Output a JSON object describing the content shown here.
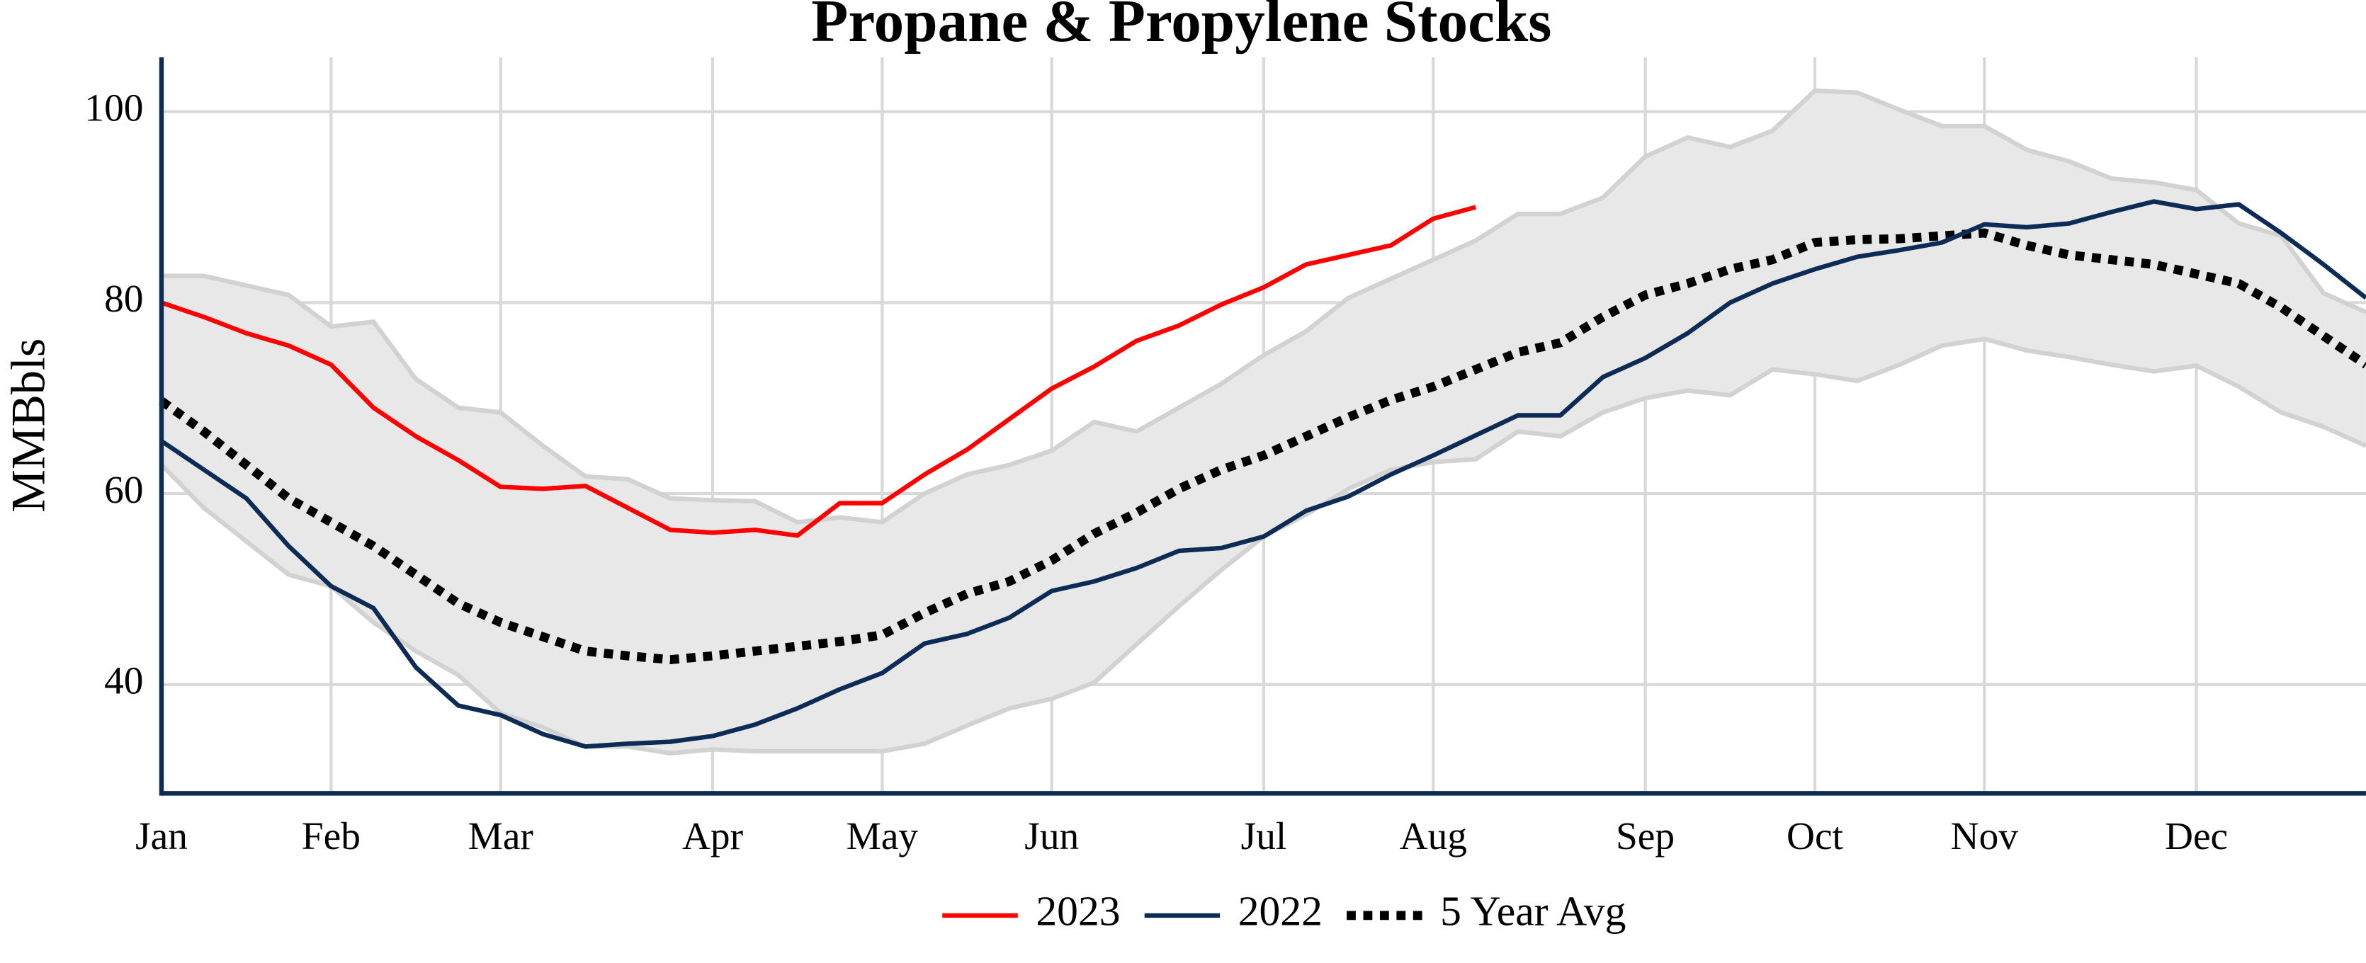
{
  "chart_data": {
    "type": "line",
    "title": "Propane & Propylene Stocks",
    "y_label": "MMBbls",
    "categories": [
      "Jan",
      null,
      null,
      null,
      "Feb",
      null,
      null,
      null,
      "Mar",
      null,
      null,
      null,
      null,
      "Apr",
      null,
      null,
      null,
      "May",
      null,
      null,
      null,
      "Jun",
      null,
      null,
      null,
      null,
      "Jul",
      null,
      null,
      null,
      "Aug",
      null,
      null,
      null,
      null,
      "Sep",
      null,
      null,
      null,
      "Oct",
      null,
      null,
      null,
      "Nov",
      null,
      null,
      null,
      null,
      "Dec",
      null,
      null,
      null,
      null
    ],
    "ylim": [
      28.6,
      105.7
    ],
    "yticks": [
      40,
      60,
      80,
      100
    ],
    "grid": true,
    "legend": "bottom",
    "band": {
      "color": "#e8e8e8",
      "edge_color": "#d2d2d2",
      "upper": [
        82.8,
        82.8,
        81.8,
        80.8,
        77.5,
        78,
        72,
        69,
        68.5,
        65,
        61.8,
        61.5,
        59.5,
        59.3,
        59.2,
        57,
        57.5,
        57,
        60,
        62,
        63,
        64.5,
        67.5,
        66.5,
        69,
        71.5,
        74.5,
        77,
        80.5,
        82.5,
        84.5,
        86.5,
        89.3,
        89.3,
        91,
        95.3,
        97.3,
        96.3,
        98,
        102.2,
        102,
        100.2,
        98.5,
        98.5,
        96,
        94.8,
        93,
        92.6,
        91.8,
        88.3,
        87,
        81,
        79
      ],
      "lower": [
        63,
        58.5,
        55,
        51.5,
        50.3,
        46.5,
        43.5,
        41,
        37,
        35.5,
        33.5,
        33.5,
        32.8,
        33.2,
        33,
        33,
        33,
        33,
        33.8,
        35.7,
        37.5,
        38.5,
        40.2,
        44.2,
        48.2,
        52,
        55.5,
        57.8,
        60.5,
        62.5,
        63.3,
        63.6,
        66.5,
        66,
        68.5,
        70,
        70.8,
        70.3,
        73,
        72.5,
        71.8,
        73.5,
        75.5,
        76.2,
        75,
        74.3,
        73.5,
        72.8,
        73.4,
        71.2,
        68.5,
        67,
        65
      ]
    },
    "series": [
      {
        "name": "2023",
        "color": "#ff0000",
        "dash": "solid",
        "values": [
          80,
          78.5,
          76.8,
          75.5,
          73.5,
          69,
          66,
          63.5,
          60.7,
          60.5,
          60.8,
          58.5,
          56.2,
          55.9,
          56.2,
          55.6,
          59,
          59,
          62,
          64.6,
          67.8,
          71,
          73.3,
          76,
          77.6,
          79.8,
          81.6,
          84,
          85,
          86,
          88.8,
          90,
          null,
          null,
          null,
          null,
          null,
          null,
          null,
          null,
          null,
          null,
          null,
          null,
          null,
          null,
          null,
          null,
          null,
          null,
          null,
          null,
          null
        ]
      },
      {
        "name": "2022",
        "color": "#0c2c56",
        "dash": "solid",
        "values": [
          65.5,
          62.5,
          59.5,
          54.5,
          50.3,
          48,
          41.8,
          37.8,
          36.8,
          34.8,
          33.5,
          33.8,
          34,
          34.6,
          35.8,
          37.5,
          39.5,
          41.2,
          44.3,
          45.3,
          47,
          49.8,
          50.8,
          52.2,
          54,
          54.3,
          55.5,
          58.2,
          59.7,
          62,
          64,
          66.1,
          68.2,
          68.2,
          72.2,
          74.2,
          76.8,
          80,
          82,
          83.5,
          84.8,
          85.5,
          86.3,
          88.2,
          87.9,
          88.3,
          89.5,
          90.6,
          89.8,
          90.3,
          87.3,
          84,
          80.5
        ]
      },
      {
        "name": "5 Year Avg",
        "color": "#000000",
        "dash": "dotted",
        "values": [
          69.7,
          66.5,
          63,
          59.5,
          57,
          54.5,
          51.5,
          48.5,
          46.5,
          45,
          43.5,
          43,
          42.6,
          43,
          43.5,
          44,
          44.5,
          45.2,
          47.5,
          49.5,
          50.8,
          53,
          55.8,
          58,
          60.5,
          62.5,
          64,
          66,
          68,
          69.8,
          71.2,
          73,
          74.8,
          75.8,
          78.5,
          80.8,
          82,
          83.5,
          84.5,
          86.3,
          86.6,
          86.7,
          87,
          87.3,
          86,
          85,
          84.5,
          84,
          83,
          82,
          79.5,
          76.5,
          73.5
        ]
      }
    ]
  }
}
